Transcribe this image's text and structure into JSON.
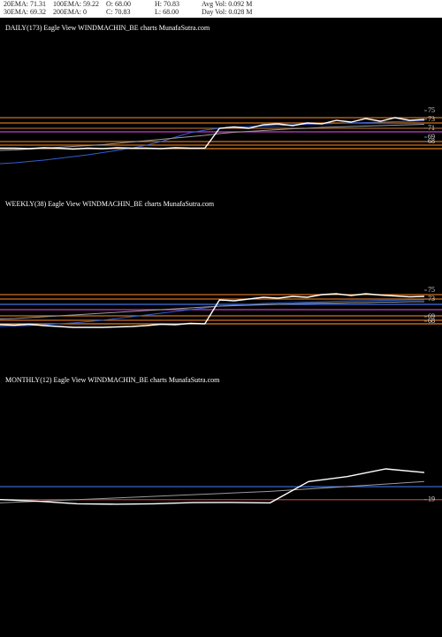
{
  "header": {
    "line1": [
      "20EMA: 71.31",
      "100EMA: 59.22",
      "O: 68.00",
      "H: 70.83",
      "Avg Vol: 0.092  M"
    ],
    "line2": [
      "30EMA: 69.32",
      "200EMA: 0",
      "C: 70.83",
      "L: 68.00",
      "Day Vol: 0.028  M"
    ]
  },
  "chart_data": [
    {
      "type": "line",
      "title": "DAILY(173) Eagle   View  WINDMACHIN_BE charts MunafaSutra.com",
      "ylim": [
        60,
        78
      ],
      "yticks": [
        68,
        69,
        71,
        73,
        75
      ],
      "hlines": [
        {
          "value": 73.4,
          "color": "#d0701c"
        },
        {
          "value": 72.2,
          "color": "#d0701c"
        },
        {
          "value": 71.0,
          "color": "#a06030"
        },
        {
          "value": 70.2,
          "color": "#c040c0"
        },
        {
          "value": 68.0,
          "color": "#d0701c"
        },
        {
          "value": 67.2,
          "color": "#d0701c"
        },
        {
          "value": 66.4,
          "color": "#e08020"
        }
      ],
      "series": [
        {
          "color": "#3060d0",
          "values": [
            63,
            63.2,
            63.5,
            63.8,
            64.2,
            64.6,
            65.0,
            65.5,
            66.0,
            66.5,
            67.2,
            68.0,
            69.0,
            70.0,
            70.6,
            71.0,
            71.2,
            71.4,
            71.5,
            71.6,
            71.8,
            71.9,
            72.0,
            72.1,
            72.2,
            72.3,
            72.4,
            72.5,
            72.6,
            72.7
          ]
        },
        {
          "color": "#9a9a9a",
          "values": [
            66.0,
            66.1,
            66.3,
            66.5,
            66.7,
            66.9,
            67.1,
            67.3,
            67.6,
            67.9,
            68.2,
            68.5,
            68.8,
            69.1,
            69.4,
            69.8,
            70.1,
            70.3,
            70.5,
            70.7,
            70.9,
            71.0,
            71.2,
            71.3,
            71.4,
            71.5,
            71.6,
            71.7,
            71.8,
            71.9
          ]
        },
        {
          "color": "#ffffff",
          "values": [
            66.5,
            66.5,
            66.4,
            66.6,
            66.5,
            66.3,
            66.5,
            66.4,
            66.6,
            66.5,
            66.5,
            66.4,
            66.6,
            66.5,
            66.5,
            71.0,
            71.3,
            71.0,
            71.8,
            72.0,
            71.6,
            72.2,
            72.0,
            72.8,
            72.4,
            73.2,
            72.6,
            73.4,
            72.8,
            73.0
          ]
        }
      ]
    },
    {
      "type": "line",
      "title": "WEEKLY(38) Eagle   View  WINDMACHIN_BE charts MunafaSutra.com",
      "ylim": [
        60,
        78
      ],
      "yticks": [
        68,
        69,
        73,
        75
      ],
      "hlines": [
        {
          "value": 74.0,
          "color": "#d0701c"
        },
        {
          "value": 73.0,
          "color": "#d0701c"
        },
        {
          "value": 71.8,
          "color": "#4070e0"
        },
        {
          "value": 70.6,
          "color": "#c040c0"
        },
        {
          "value": 69.2,
          "color": "#d0701c"
        },
        {
          "value": 68.2,
          "color": "#d0701c"
        },
        {
          "value": 67.4,
          "color": "#e08020"
        }
      ],
      "series": [
        {
          "color": "#3060d0",
          "values": [
            66.8,
            66.9,
            67.0,
            67.2,
            67.4,
            67.6,
            67.9,
            68.2,
            68.6,
            69.0,
            69.4,
            69.8,
            70.2,
            70.6,
            71.0,
            71.4,
            71.6,
            71.8,
            72.0,
            72.1,
            72.2,
            72.3,
            72.4,
            72.5,
            72.6,
            72.6,
            72.7,
            72.7,
            72.8,
            72.8
          ]
        },
        {
          "color": "#9a9a9a",
          "values": [
            68.5,
            68.6,
            68.8,
            69.0,
            69.2,
            69.4,
            69.6,
            69.8,
            70.0,
            70.2,
            70.4,
            70.6,
            70.8,
            71.0,
            71.2,
            71.4,
            71.5,
            71.6,
            71.7,
            71.8,
            71.9,
            72.0,
            72.1,
            72.1,
            72.2,
            72.2,
            72.3,
            72.3,
            72.4,
            72.4
          ]
        },
        {
          "color": "#ffffff",
          "values": [
            67.2,
            67.1,
            67.3,
            67.0,
            66.8,
            66.6,
            66.6,
            66.6,
            66.7,
            66.8,
            67.0,
            67.3,
            67.2,
            67.5,
            67.4,
            72.8,
            72.6,
            73.0,
            73.4,
            73.2,
            73.6,
            73.4,
            74.0,
            74.2,
            73.8,
            74.2,
            73.9,
            73.7,
            73.5,
            73.6
          ]
        }
      ]
    },
    {
      "type": "line",
      "title": "MONTHLY(12) Eagle   View  WINDMACHIN_BE charts MunafaSutra.com",
      "ylim": [
        0,
        70
      ],
      "yticks": [
        19
      ],
      "hlines": [
        {
          "value": 26.9,
          "color": "#4070e0"
        },
        {
          "value": 19,
          "color": "#b04040"
        }
      ],
      "series": [
        {
          "color": "#9a9a9a",
          "values": [
            17.0,
            18.0,
            19.0,
            20.0,
            21.0,
            22.0,
            23.0,
            24.0,
            25.5,
            27.0,
            28.5,
            30.0
          ]
        },
        {
          "color": "#ffffff",
          "values": [
            19,
            18,
            16.5,
            16.2,
            16.5,
            17.2,
            17.3,
            17,
            30,
            33,
            37.7,
            35.5
          ]
        }
      ]
    }
  ]
}
